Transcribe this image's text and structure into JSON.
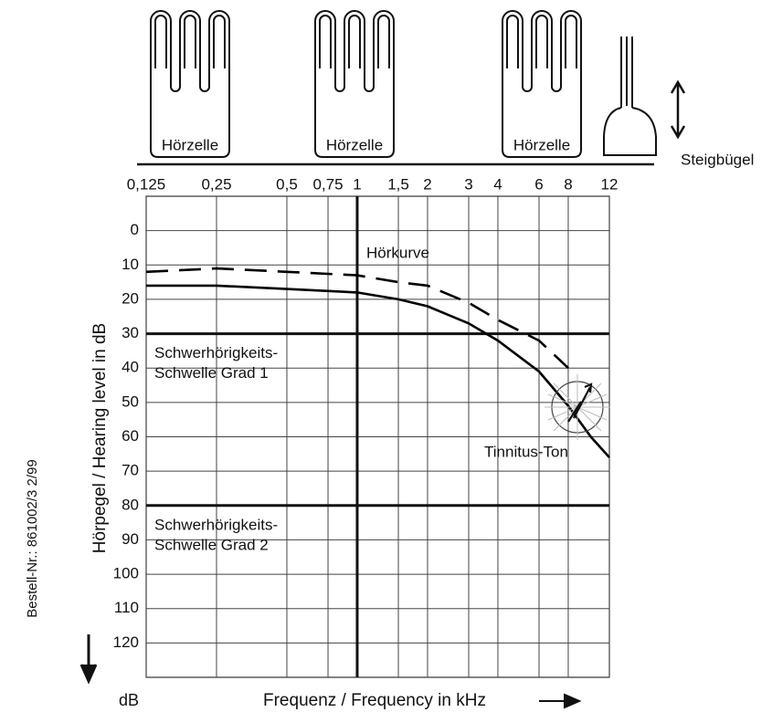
{
  "illustration": {
    "cells": [
      "Hörzelle",
      "Hörzelle",
      "Hörzelle"
    ],
    "stapes": "Steigbügel"
  },
  "chart_data": {
    "type": "line",
    "log_x": true,
    "grid": true,
    "x_label": "Frequenz / Frequency in kHz",
    "y_label": "Hörpegel / Hearing level in dB",
    "y_unit": "dB",
    "xlim": [
      0.125,
      12
    ],
    "ylim": [
      -10,
      130
    ],
    "y_reversed": true,
    "xticks": [
      {
        "value": 0.125,
        "label": "0,125"
      },
      {
        "value": 0.25,
        "label": "0,25"
      },
      {
        "value": 0.5,
        "label": "0,5"
      },
      {
        "value": 0.75,
        "label": "0,75"
      },
      1,
      {
        "value": 1.5,
        "label": "1,5"
      },
      2,
      3,
      4,
      6,
      8,
      12
    ],
    "yticks": [
      0,
      10,
      20,
      30,
      40,
      50,
      60,
      70,
      80,
      90,
      100,
      110,
      120
    ],
    "ref_x": 1,
    "thresholds": [
      {
        "value": 30,
        "label": [
          "Schwerhörigkeits-",
          "Schwelle Grad 1"
        ]
      },
      {
        "value": 80,
        "label": [
          "Schwerhörigkeits-",
          "Schwelle Grad 2"
        ]
      }
    ],
    "series": [
      {
        "style": "solid",
        "color": "#000000",
        "x": [
          0.125,
          0.25,
          0.5,
          1,
          1.5,
          2,
          3,
          4,
          6,
          8,
          10,
          12
        ],
        "values": [
          16,
          16,
          17,
          18,
          20,
          22,
          27,
          32,
          41,
          51,
          60,
          66
        ]
      },
      {
        "style": "dashed",
        "color": "#000000",
        "x": [
          0.125,
          0.25,
          0.5,
          1,
          1.5,
          2,
          3,
          4,
          6,
          8
        ],
        "values": [
          12,
          11,
          12,
          13,
          15,
          16,
          21,
          26,
          32,
          40
        ]
      }
    ],
    "annotations": [
      "Hörkurve",
      "Tinnitus-Ton"
    ]
  },
  "footer": "Bestell-Nr.: 861002/3  2/99"
}
